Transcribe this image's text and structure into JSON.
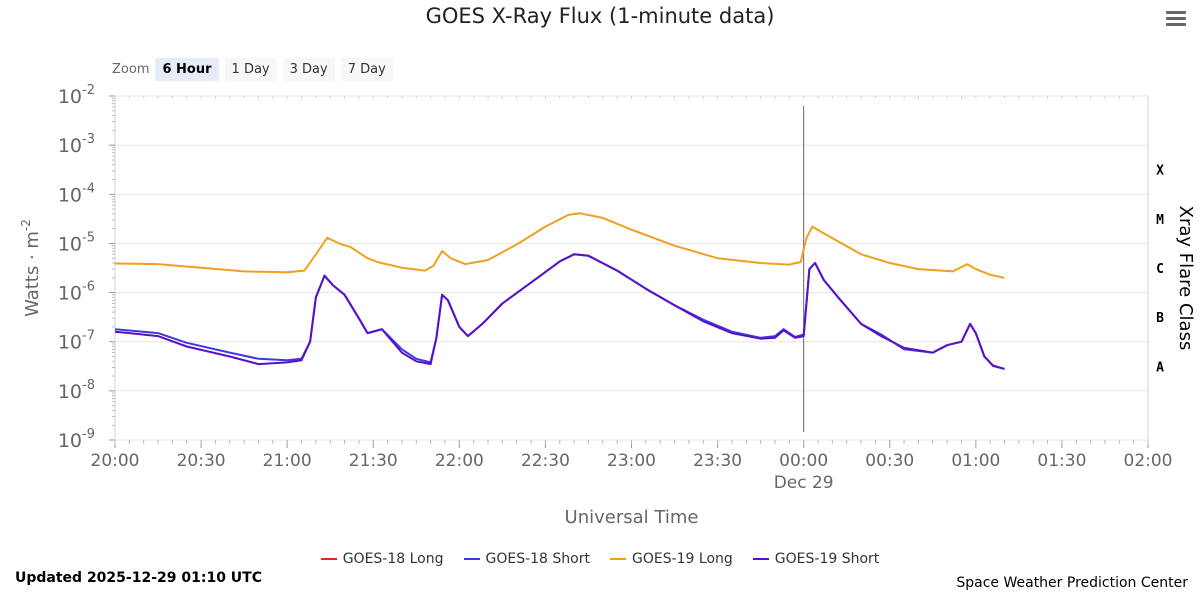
{
  "title": "GOES X-Ray Flux (1-minute data)",
  "zoom": {
    "label": "Zoom",
    "buttons": [
      "6 Hour",
      "1 Day",
      "3 Day",
      "7 Day"
    ],
    "active": "6 Hour"
  },
  "updated": "Updated 2025-12-29 01:10 UTC",
  "credit": "Space Weather Prediction Center",
  "chart_data": {
    "type": "line",
    "title": "GOES X-Ray Flux (1-minute data)",
    "xlabel": "Universal Time",
    "ylabel": "Watts · m",
    "ylabel_sup": "-2",
    "y2label": "Xray Flare Class",
    "y_scale": "log",
    "ylim": [
      1e-09,
      0.01
    ],
    "y_ticks": [
      {
        "exp": "-2",
        "value": 0.01
      },
      {
        "exp": "-3",
        "value": 0.001
      },
      {
        "exp": "-4",
        "value": 0.0001
      },
      {
        "exp": "-5",
        "value": 1e-05
      },
      {
        "exp": "-6",
        "value": 1e-06
      },
      {
        "exp": "-7",
        "value": 1e-07
      },
      {
        "exp": "-8",
        "value": 1e-08
      },
      {
        "exp": "-9",
        "value": 1e-09
      }
    ],
    "x_range": [
      "2025-12-28 20:00",
      "2025-12-29 02:00"
    ],
    "x_ticks": [
      "20:00",
      "20:30",
      "21:00",
      "21:30",
      "22:00",
      "22:30",
      "23:00",
      "23:30",
      "00:00",
      "00:30",
      "01:00",
      "01:30",
      "02:00"
    ],
    "x_date_label": "Dec 29",
    "flare_classes": [
      {
        "label": "X",
        "value": 0.0001
      },
      {
        "label": "M",
        "value": 1e-05
      },
      {
        "label": "C",
        "value": 1e-06
      },
      {
        "label": "B",
        "value": 1e-07
      },
      {
        "label": "A",
        "value": 1e-08
      }
    ],
    "vertical_marker": "2025-12-29 00:00",
    "grid": true,
    "legend_position": "bottom",
    "series": [
      {
        "name": "GOES-18 Long",
        "color": "#e8251e",
        "points": []
      },
      {
        "name": "GOES-18 Short",
        "color": "#3b3be0",
        "points": [
          [
            "2025-12-28 20:00",
            1.8e-07
          ],
          [
            "2025-12-28 20:15",
            1.5e-07
          ],
          [
            "2025-12-28 20:25",
            9.5e-08
          ],
          [
            "2025-12-28 20:40",
            6e-08
          ],
          [
            "2025-12-28 20:50",
            4.5e-08
          ],
          [
            "2025-12-28 21:00",
            4.2e-08
          ],
          [
            "2025-12-28 21:05",
            4.5e-08
          ],
          [
            "2025-12-28 21:08",
            1e-07
          ],
          [
            "2025-12-28 21:10",
            8e-07
          ],
          [
            "2025-12-28 21:13",
            2.2e-06
          ],
          [
            "2025-12-28 21:16",
            1.4e-06
          ],
          [
            "2025-12-28 21:20",
            9e-07
          ],
          [
            "2025-12-28 21:25",
            3e-07
          ],
          [
            "2025-12-28 21:28",
            1.5e-07
          ],
          [
            "2025-12-28 21:33",
            1.8e-07
          ],
          [
            "2025-12-28 21:40",
            7e-08
          ],
          [
            "2025-12-28 21:45",
            4.5e-08
          ],
          [
            "2025-12-28 21:50",
            3.8e-08
          ],
          [
            "2025-12-28 21:52",
            1.2e-07
          ],
          [
            "2025-12-28 21:54",
            9e-07
          ],
          [
            "2025-12-28 21:56",
            7e-07
          ],
          [
            "2025-12-28 22:00",
            2e-07
          ],
          [
            "2025-12-28 22:03",
            1.3e-07
          ],
          [
            "2025-12-28 22:08",
            2.3e-07
          ],
          [
            "2025-12-28 22:15",
            6e-07
          ],
          [
            "2025-12-28 22:25",
            1.6e-06
          ],
          [
            "2025-12-28 22:35",
            4.3e-06
          ],
          [
            "2025-12-28 22:40",
            6e-06
          ],
          [
            "2025-12-28 22:45",
            5.6e-06
          ],
          [
            "2025-12-28 22:55",
            2.8e-06
          ],
          [
            "2025-12-28 23:05",
            1.2e-06
          ],
          [
            "2025-12-28 23:15",
            5.5e-07
          ],
          [
            "2025-12-28 23:25",
            2.8e-07
          ],
          [
            "2025-12-28 23:35",
            1.6e-07
          ],
          [
            "2025-12-28 23:45",
            1.2e-07
          ],
          [
            "2025-12-28 23:50",
            1.3e-07
          ],
          [
            "2025-12-28 23:53",
            1.8e-07
          ],
          [
            "2025-12-28 23:57",
            1.25e-07
          ],
          [
            "2025-12-29 00:00",
            1.4e-07
          ],
          [
            "2025-12-29 00:02",
            3e-06
          ],
          [
            "2025-12-29 00:04",
            4e-06
          ],
          [
            "2025-12-29 00:07",
            1.8e-06
          ],
          [
            "2025-12-29 00:12",
            8e-07
          ],
          [
            "2025-12-29 00:20",
            2.3e-07
          ],
          [
            "2025-12-29 00:27",
            1.4e-07
          ],
          [
            "2025-12-29 00:35",
            7e-08
          ],
          [
            "2025-12-29 00:45",
            6e-08
          ],
          [
            "2025-12-29 00:50",
            8.5e-08
          ],
          [
            "2025-12-29 00:55",
            1e-07
          ],
          [
            "2025-12-29 00:58",
            2.3e-07
          ],
          [
            "2025-12-29 01:00",
            1.5e-07
          ],
          [
            "2025-12-29 01:03",
            5e-08
          ],
          [
            "2025-12-29 01:06",
            3.2e-08
          ],
          [
            "2025-12-29 01:10",
            2.8e-08
          ]
        ]
      },
      {
        "name": "GOES-19 Long",
        "color": "#f0a020",
        "points": [
          [
            "2025-12-28 20:00",
            3.9e-06
          ],
          [
            "2025-12-28 20:15",
            3.8e-06
          ],
          [
            "2025-12-28 20:30",
            3.2e-06
          ],
          [
            "2025-12-28 20:45",
            2.7e-06
          ],
          [
            "2025-12-28 21:00",
            2.6e-06
          ],
          [
            "2025-12-28 21:06",
            2.8e-06
          ],
          [
            "2025-12-28 21:10",
            6e-06
          ],
          [
            "2025-12-28 21:14",
            1.3e-05
          ],
          [
            "2025-12-28 21:18",
            1e-05
          ],
          [
            "2025-12-28 21:22",
            8.5e-06
          ],
          [
            "2025-12-28 21:28",
            5e-06
          ],
          [
            "2025-12-28 21:32",
            4.1e-06
          ],
          [
            "2025-12-28 21:40",
            3.2e-06
          ],
          [
            "2025-12-28 21:48",
            2.8e-06
          ],
          [
            "2025-12-28 21:51",
            3.5e-06
          ],
          [
            "2025-12-28 21:54",
            7e-06
          ],
          [
            "2025-12-28 21:57",
            5e-06
          ],
          [
            "2025-12-28 22:02",
            3.8e-06
          ],
          [
            "2025-12-28 22:10",
            4.6e-06
          ],
          [
            "2025-12-28 22:20",
            9.5e-06
          ],
          [
            "2025-12-28 22:30",
            2.2e-05
          ],
          [
            "2025-12-28 22:38",
            3.8e-05
          ],
          [
            "2025-12-28 22:42",
            4.1e-05
          ],
          [
            "2025-12-28 22:50",
            3.3e-05
          ],
          [
            "2025-12-28 23:00",
            1.9e-05
          ],
          [
            "2025-12-28 23:15",
            9e-06
          ],
          [
            "2025-12-28 23:30",
            5e-06
          ],
          [
            "2025-12-28 23:45",
            4e-06
          ],
          [
            "2025-12-28 23:55",
            3.7e-06
          ],
          [
            "2025-12-28 23:59",
            4.2e-06
          ],
          [
            "2025-12-29 00:01",
            1.3e-05
          ],
          [
            "2025-12-29 00:03",
            2.2e-05
          ],
          [
            "2025-12-29 00:07",
            1.6e-05
          ],
          [
            "2025-12-29 00:12",
            1.1e-05
          ],
          [
            "2025-12-29 00:20",
            6e-06
          ],
          [
            "2025-12-29 00:30",
            4e-06
          ],
          [
            "2025-12-29 00:40",
            3e-06
          ],
          [
            "2025-12-29 00:52",
            2.7e-06
          ],
          [
            "2025-12-29 00:57",
            3.8e-06
          ],
          [
            "2025-12-29 01:00",
            3e-06
          ],
          [
            "2025-12-29 01:05",
            2.3e-06
          ],
          [
            "2025-12-29 01:10",
            2e-06
          ]
        ]
      },
      {
        "name": "GOES-19 Short",
        "color": "#5a0fc8",
        "points": [
          [
            "2025-12-28 20:00",
            1.6e-07
          ],
          [
            "2025-12-28 20:15",
            1.3e-07
          ],
          [
            "2025-12-28 20:25",
            8e-08
          ],
          [
            "2025-12-28 20:40",
            5e-08
          ],
          [
            "2025-12-28 20:50",
            3.5e-08
          ],
          [
            "2025-12-28 21:00",
            3.8e-08
          ],
          [
            "2025-12-28 21:05",
            4.2e-08
          ],
          [
            "2025-12-28 21:08",
            1e-07
          ],
          [
            "2025-12-28 21:10",
            8e-07
          ],
          [
            "2025-12-28 21:13",
            2.2e-06
          ],
          [
            "2025-12-28 21:16",
            1.4e-06
          ],
          [
            "2025-12-28 21:20",
            9e-07
          ],
          [
            "2025-12-28 21:25",
            3e-07
          ],
          [
            "2025-12-28 21:28",
            1.5e-07
          ],
          [
            "2025-12-28 21:33",
            1.8e-07
          ],
          [
            "2025-12-28 21:40",
            6e-08
          ],
          [
            "2025-12-28 21:45",
            4e-08
          ],
          [
            "2025-12-28 21:50",
            3.5e-08
          ],
          [
            "2025-12-28 21:52",
            1.2e-07
          ],
          [
            "2025-12-28 21:54",
            9e-07
          ],
          [
            "2025-12-28 21:56",
            7e-07
          ],
          [
            "2025-12-28 22:00",
            2e-07
          ],
          [
            "2025-12-28 22:03",
            1.3e-07
          ],
          [
            "2025-12-28 22:08",
            2.3e-07
          ],
          [
            "2025-12-28 22:15",
            6e-07
          ],
          [
            "2025-12-28 22:25",
            1.6e-06
          ],
          [
            "2025-12-28 22:35",
            4.3e-06
          ],
          [
            "2025-12-28 22:40",
            6e-06
          ],
          [
            "2025-12-28 22:45",
            5.6e-06
          ],
          [
            "2025-12-28 22:55",
            2.8e-06
          ],
          [
            "2025-12-28 23:05",
            1.2e-06
          ],
          [
            "2025-12-28 23:15",
            5.5e-07
          ],
          [
            "2025-12-28 23:25",
            2.6e-07
          ],
          [
            "2025-12-28 23:35",
            1.5e-07
          ],
          [
            "2025-12-28 23:45",
            1.15e-07
          ],
          [
            "2025-12-28 23:50",
            1.2e-07
          ],
          [
            "2025-12-28 23:53",
            1.7e-07
          ],
          [
            "2025-12-28 23:57",
            1.2e-07
          ],
          [
            "2025-12-29 00:00",
            1.3e-07
          ],
          [
            "2025-12-29 00:02",
            3e-06
          ],
          [
            "2025-12-29 00:04",
            4e-06
          ],
          [
            "2025-12-29 00:07",
            1.8e-06
          ],
          [
            "2025-12-29 00:12",
            8e-07
          ],
          [
            "2025-12-29 00:20",
            2.3e-07
          ],
          [
            "2025-12-29 00:27",
            1.3e-07
          ],
          [
            "2025-12-29 00:35",
            7.5e-08
          ],
          [
            "2025-12-29 00:45",
            6e-08
          ],
          [
            "2025-12-29 00:50",
            8.5e-08
          ],
          [
            "2025-12-29 00:55",
            1e-07
          ],
          [
            "2025-12-29 00:58",
            2.3e-07
          ],
          [
            "2025-12-29 01:00",
            1.5e-07
          ],
          [
            "2025-12-29 01:03",
            5e-08
          ],
          [
            "2025-12-29 01:06",
            3.3e-08
          ],
          [
            "2025-12-29 01:10",
            2.8e-08
          ]
        ]
      }
    ]
  }
}
